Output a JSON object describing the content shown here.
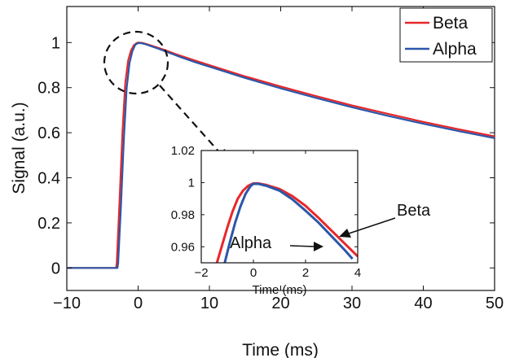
{
  "chart_data": [
    {
      "type": "line",
      "role": "main",
      "xlabel": "Time (ms)",
      "ylabel": "Signal (a.u.)",
      "xlim": [
        -10,
        50
      ],
      "ylim": [
        -0.1,
        1.16
      ],
      "xticks": [
        -10,
        0,
        10,
        20,
        30,
        40,
        50
      ],
      "xtick_labels": [
        "−10",
        "0",
        "10",
        "20",
        "30",
        "40",
        "50"
      ],
      "yticks": [
        0,
        0.2,
        0.4,
        0.6,
        0.8,
        1
      ],
      "ytick_labels": [
        "0",
        "0.2",
        "0.4",
        "0.6",
        "0.8",
        "1"
      ],
      "grid": false,
      "legend": {
        "position": "top-right",
        "entries": [
          "Beta",
          "Alpha"
        ]
      },
      "series": [
        {
          "name": "Beta",
          "color": "#e8272a",
          "x": [
            -10,
            -3.1,
            -3.0,
            -2.6,
            -2.2,
            -1.8,
            -1.4,
            -1.0,
            -0.6,
            -0.2,
            0.0,
            0.5,
            1,
            2,
            3,
            4,
            5,
            6,
            8,
            10,
            15,
            20,
            25,
            30,
            35,
            40,
            45,
            50
          ],
          "y": [
            0,
            0,
            0.02,
            0.3,
            0.6,
            0.82,
            0.92,
            0.965,
            0.988,
            0.998,
            1.0,
            0.999,
            0.995,
            0.985,
            0.975,
            0.964,
            0.952,
            0.941,
            0.92,
            0.9,
            0.85,
            0.805,
            0.762,
            0.721,
            0.684,
            0.648,
            0.615,
            0.584
          ]
        },
        {
          "name": "Alpha",
          "color": "#2b57a8",
          "x": [
            -10,
            -2.9,
            -2.8,
            -2.4,
            -2.0,
            -1.6,
            -1.2,
            -0.8,
            -0.4,
            0.0,
            0.5,
            1,
            2,
            3,
            4,
            5,
            6,
            8,
            10,
            15,
            20,
            25,
            30,
            35,
            40,
            45,
            50
          ],
          "y": [
            0,
            0,
            0.02,
            0.28,
            0.57,
            0.8,
            0.91,
            0.962,
            0.99,
            0.998,
            0.997,
            0.993,
            0.982,
            0.971,
            0.959,
            0.947,
            0.935,
            0.913,
            0.893,
            0.843,
            0.797,
            0.754,
            0.713,
            0.675,
            0.64,
            0.607,
            0.576
          ]
        }
      ]
    },
    {
      "type": "line",
      "role": "inset",
      "xlabel": "Time (ms)",
      "ylabel": "",
      "xlim": [
        -2,
        4
      ],
      "ylim": [
        0.95,
        1.02
      ],
      "xticks": [
        -2,
        0,
        2,
        4
      ],
      "xtick_labels": [
        "−2",
        "0",
        "2",
        "4"
      ],
      "yticks": [
        0.96,
        0.98,
        1,
        1.02
      ],
      "ytick_labels": [
        "0.96",
        "0.98",
        "1",
        "1.02"
      ],
      "grid": false,
      "series": [
        {
          "name": "Beta",
          "color": "#e8272a",
          "x": [
            -1.4,
            -1.2,
            -1.0,
            -0.8,
            -0.6,
            -0.4,
            -0.2,
            0.0,
            0.2,
            0.5,
            1.0,
            1.5,
            2.0,
            2.5,
            3.0,
            3.5,
            4.0
          ],
          "y": [
            0.95,
            0.961,
            0.972,
            0.982,
            0.99,
            0.995,
            0.998,
            0.9995,
            0.9995,
            0.9985,
            0.996,
            0.9915,
            0.9855,
            0.978,
            0.97,
            0.962,
            0.954
          ]
        },
        {
          "name": "Alpha",
          "color": "#2b57a8",
          "x": [
            -1.1,
            -0.9,
            -0.7,
            -0.5,
            -0.3,
            -0.1,
            0.0,
            0.2,
            0.5,
            1.0,
            1.5,
            2.0,
            2.5,
            3.0,
            3.5,
            3.8
          ],
          "y": [
            0.95,
            0.963,
            0.975,
            0.985,
            0.993,
            0.998,
            0.9992,
            0.9992,
            0.998,
            0.995,
            0.9895,
            0.9825,
            0.975,
            0.9665,
            0.958,
            0.9525
          ]
        }
      ],
      "annotations": [
        {
          "text": "Beta",
          "arrow_to": [
            3.0,
            0.969
          ]
        },
        {
          "text": "Alpha",
          "arrow_to": [
            2.4,
            0.963
          ]
        }
      ]
    }
  ]
}
